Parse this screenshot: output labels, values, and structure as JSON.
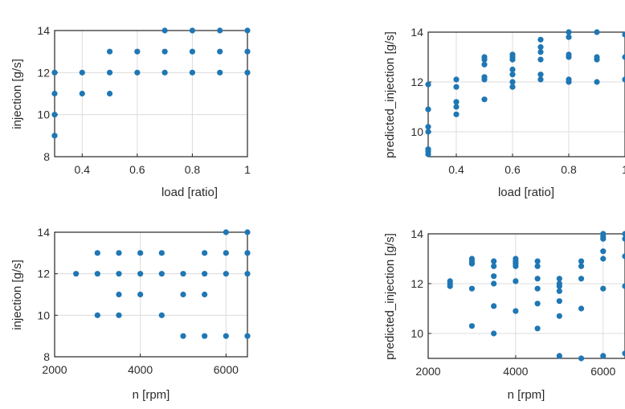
{
  "chart_data": [
    {
      "type": "scatter",
      "xlabel": "load [ratio]",
      "ylabel": "injection [g/s]",
      "xlim": [
        0.3,
        1.0
      ],
      "ylim": [
        8,
        14
      ],
      "xticks": [
        "0.4",
        "0.6",
        "0.8",
        "1"
      ],
      "yticks": [
        "8",
        "10",
        "12",
        "14"
      ],
      "grid": true,
      "color": "#1f77b4",
      "points": [
        [
          0.3,
          9
        ],
        [
          0.3,
          10
        ],
        [
          0.3,
          11
        ],
        [
          0.3,
          12
        ],
        [
          0.4,
          11
        ],
        [
          0.4,
          12
        ],
        [
          0.5,
          11
        ],
        [
          0.5,
          12
        ],
        [
          0.5,
          13
        ],
        [
          0.6,
          12
        ],
        [
          0.6,
          13
        ],
        [
          0.7,
          12
        ],
        [
          0.7,
          13
        ],
        [
          0.7,
          14
        ],
        [
          0.8,
          12
        ],
        [
          0.8,
          13
        ],
        [
          0.8,
          14
        ],
        [
          0.9,
          12
        ],
        [
          0.9,
          13
        ],
        [
          0.9,
          14
        ],
        [
          1.0,
          12
        ],
        [
          1.0,
          13
        ],
        [
          1.0,
          14
        ]
      ]
    },
    {
      "type": "scatter",
      "xlabel": "load [ratio]",
      "ylabel": "predicted_injection [g/s]",
      "xlim": [
        0.3,
        1.0
      ],
      "ylim": [
        9,
        14
      ],
      "xticks": [
        "0.4",
        "0.6",
        "0.8",
        "1"
      ],
      "yticks": [
        "10",
        "12",
        "14"
      ],
      "grid": true,
      "color": "#1f77b4",
      "points": [
        [
          0.3,
          9.1
        ],
        [
          0.3,
          9.2
        ],
        [
          0.3,
          9.3
        ],
        [
          0.3,
          10.0
        ],
        [
          0.3,
          10.2
        ],
        [
          0.3,
          10.9
        ],
        [
          0.3,
          11.9
        ],
        [
          0.4,
          10.7
        ],
        [
          0.4,
          11.0
        ],
        [
          0.4,
          11.2
        ],
        [
          0.4,
          11.8
        ],
        [
          0.4,
          12.1
        ],
        [
          0.5,
          11.3
        ],
        [
          0.5,
          12.1
        ],
        [
          0.5,
          12.2
        ],
        [
          0.5,
          12.7
        ],
        [
          0.5,
          12.9
        ],
        [
          0.5,
          13.0
        ],
        [
          0.6,
          11.8
        ],
        [
          0.6,
          12.0
        ],
        [
          0.6,
          12.3
        ],
        [
          0.6,
          12.5
        ],
        [
          0.6,
          12.9
        ],
        [
          0.6,
          13.0
        ],
        [
          0.6,
          13.1
        ],
        [
          0.7,
          12.1
        ],
        [
          0.7,
          12.3
        ],
        [
          0.7,
          12.9
        ],
        [
          0.7,
          13.2
        ],
        [
          0.7,
          13.4
        ],
        [
          0.7,
          13.7
        ],
        [
          0.8,
          12.0
        ],
        [
          0.8,
          12.1
        ],
        [
          0.8,
          13.0
        ],
        [
          0.8,
          13.1
        ],
        [
          0.8,
          13.8
        ],
        [
          0.8,
          14.0
        ],
        [
          0.9,
          12.0
        ],
        [
          0.9,
          12.9
        ],
        [
          0.9,
          13.0
        ],
        [
          0.9,
          14.0
        ],
        [
          1.0,
          12.1
        ],
        [
          1.0,
          13.0
        ],
        [
          1.0,
          13.9
        ]
      ]
    },
    {
      "type": "scatter",
      "xlabel": "n [rpm]",
      "ylabel": "injection [g/s]",
      "xlim": [
        2000,
        6500
      ],
      "ylim": [
        8,
        14
      ],
      "xticks": [
        "2000",
        "4000",
        "6000"
      ],
      "yticks": [
        "8",
        "10",
        "12",
        "14"
      ],
      "grid": true,
      "color": "#1f77b4",
      "points": [
        [
          2500,
          12
        ],
        [
          3000,
          10
        ],
        [
          3000,
          12
        ],
        [
          3000,
          13
        ],
        [
          3500,
          10
        ],
        [
          3500,
          11
        ],
        [
          3500,
          12
        ],
        [
          3500,
          13
        ],
        [
          4000,
          11
        ],
        [
          4000,
          12
        ],
        [
          4000,
          13
        ],
        [
          4500,
          10
        ],
        [
          4500,
          12
        ],
        [
          4500,
          13
        ],
        [
          5000,
          9
        ],
        [
          5000,
          11
        ],
        [
          5000,
          12
        ],
        [
          5500,
          9
        ],
        [
          5500,
          11
        ],
        [
          5500,
          12
        ],
        [
          5500,
          13
        ],
        [
          6000,
          9
        ],
        [
          6000,
          12
        ],
        [
          6000,
          13
        ],
        [
          6000,
          14
        ],
        [
          6500,
          9
        ],
        [
          6500,
          12
        ],
        [
          6500,
          13
        ],
        [
          6500,
          14
        ]
      ]
    },
    {
      "type": "scatter",
      "xlabel": "n [rpm]",
      "ylabel": "predicted_injection [g/s]",
      "xlim": [
        2000,
        6500
      ],
      "ylim": [
        9,
        14
      ],
      "xticks": [
        "2000",
        "4000",
        "6000"
      ],
      "yticks": [
        "10",
        "12",
        "14"
      ],
      "grid": true,
      "color": "#1f77b4",
      "points": [
        [
          2500,
          11.9
        ],
        [
          2500,
          12.0
        ],
        [
          2500,
          12.1
        ],
        [
          3000,
          10.3
        ],
        [
          3000,
          11.8
        ],
        [
          3000,
          12.8
        ],
        [
          3000,
          12.9
        ],
        [
          3000,
          13.0
        ],
        [
          3500,
          10.0
        ],
        [
          3500,
          11.1
        ],
        [
          3500,
          12.0
        ],
        [
          3500,
          12.3
        ],
        [
          3500,
          12.7
        ],
        [
          3500,
          12.9
        ],
        [
          4000,
          10.9
        ],
        [
          4000,
          12.1
        ],
        [
          4000,
          12.7
        ],
        [
          4000,
          12.8
        ],
        [
          4000,
          12.9
        ],
        [
          4000,
          13.0
        ],
        [
          4500,
          10.2
        ],
        [
          4500,
          11.2
        ],
        [
          4500,
          11.8
        ],
        [
          4500,
          12.2
        ],
        [
          4500,
          12.7
        ],
        [
          4500,
          12.9
        ],
        [
          5000,
          9.1
        ],
        [
          5000,
          10.7
        ],
        [
          5000,
          11.3
        ],
        [
          5000,
          11.7
        ],
        [
          5000,
          11.9
        ],
        [
          5000,
          12.0
        ],
        [
          5000,
          12.2
        ],
        [
          5500,
          9.0
        ],
        [
          5500,
          11.0
        ],
        [
          5500,
          12.2
        ],
        [
          5500,
          12.7
        ],
        [
          5500,
          12.9
        ],
        [
          6000,
          9.1
        ],
        [
          6000,
          11.8
        ],
        [
          6000,
          13.0
        ],
        [
          6000,
          13.3
        ],
        [
          6000,
          13.8
        ],
        [
          6000,
          13.9
        ],
        [
          6000,
          14.0
        ],
        [
          6500,
          9.2
        ],
        [
          6500,
          11.9
        ],
        [
          6500,
          13.1
        ],
        [
          6500,
          13.8
        ],
        [
          6500,
          14.0
        ]
      ]
    }
  ]
}
